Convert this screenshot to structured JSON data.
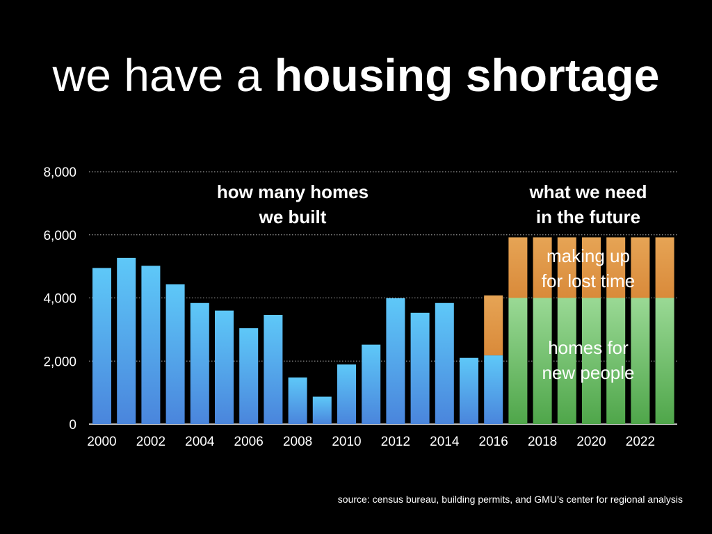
{
  "title": {
    "prefix": "we have a",
    "emphasis": "housing shortage"
  },
  "source": "source: census bureau, building permits, and GMU’s center for regional analysis",
  "chart_data": {
    "type": "bar",
    "stacked": true,
    "grid": true,
    "ylim": [
      0,
      8000
    ],
    "yticks": [
      "0",
      "2,000",
      "4,000",
      "6,000",
      "8,000"
    ],
    "ytick_values": [
      0,
      2000,
      4000,
      6000,
      8000
    ],
    "xtick_labels": [
      "2000",
      "2002",
      "2004",
      "2006",
      "2008",
      "2010",
      "2012",
      "2014",
      "2016",
      "2018",
      "2020",
      "2022"
    ],
    "categories": [
      2000,
      2001,
      2002,
      2003,
      2004,
      2005,
      2006,
      2007,
      2008,
      2009,
      2010,
      2011,
      2012,
      2013,
      2014,
      2015,
      2016,
      2017,
      2018,
      2019,
      2020,
      2021,
      2022,
      2023
    ],
    "series": [
      {
        "key": "built",
        "color_top": "#5ec8f8",
        "color_bottom": "#4a85dc",
        "values": [
          4950,
          5270,
          5020,
          4430,
          3840,
          3600,
          3040,
          3460,
          1480,
          870,
          1890,
          2520,
          3990,
          3530,
          3840,
          2100,
          2180,
          null,
          null,
          null,
          null,
          null,
          null,
          null
        ]
      },
      {
        "key": "new-people",
        "color_top": "#9ad995",
        "color_bottom": "#4fa64a",
        "values": [
          null,
          null,
          null,
          null,
          null,
          null,
          null,
          null,
          null,
          null,
          null,
          null,
          null,
          null,
          null,
          null,
          null,
          4000,
          4000,
          4000,
          4000,
          4000,
          4000,
          4000
        ]
      },
      {
        "key": "lost-time",
        "color_top": "#e6a455",
        "color_bottom": "#d98a3a",
        "values": [
          null,
          null,
          null,
          null,
          null,
          null,
          null,
          null,
          null,
          null,
          null,
          null,
          null,
          null,
          null,
          null,
          1900,
          1920,
          1920,
          1920,
          1920,
          1920,
          1920,
          1920
        ]
      }
    ],
    "annotations": {
      "built_label": [
        "how many homes",
        "we built"
      ],
      "future_label": [
        "what we need",
        "in the future"
      ],
      "lost_time_label": [
        "making up",
        "for lost time"
      ],
      "new_people_label": [
        "homes for",
        "new people"
      ]
    }
  }
}
